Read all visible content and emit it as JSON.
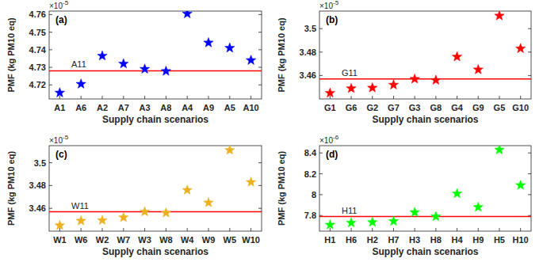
{
  "chart_data": [
    {
      "type": "scatter",
      "title": "(a)",
      "x_label": "Supply chain scenarios",
      "y_label": "PMF (kg PM10 eq)",
      "y_multiplier": {
        "base": "×10",
        "exponent": "-5"
      },
      "categories": [
        "A1",
        "A6",
        "A2",
        "A7",
        "A3",
        "A8",
        "A4",
        "A9",
        "A5",
        "A10"
      ],
      "values": [
        4.7155,
        4.7205,
        4.7365,
        4.732,
        4.729,
        4.7278,
        4.7605,
        4.744,
        4.741,
        4.734
      ],
      "color": "#0000ff",
      "marker": "star",
      "reference": {
        "label": "A11",
        "value": 4.728,
        "color": "#ff0000"
      },
      "ylim": [
        4.712,
        4.762
      ],
      "yticks": [
        4.72,
        4.73,
        4.74,
        4.75,
        4.76
      ],
      "grid": false
    },
    {
      "type": "scatter",
      "title": "(b)",
      "x_label": "Supply chain scenarios",
      "y_label": "PMF (kg PM10 eq)",
      "y_multiplier": {
        "base": "×10",
        "exponent": "-5"
      },
      "categories": [
        "G1",
        "G6",
        "G2",
        "G7",
        "G3",
        "G8",
        "G4",
        "G9",
        "G5",
        "G10"
      ],
      "values": [
        3.445,
        3.449,
        3.4495,
        3.452,
        3.457,
        3.456,
        3.476,
        3.465,
        3.511,
        3.483
      ],
      "color": "#ff0000",
      "marker": "star",
      "reference": {
        "label": "G11",
        "value": 3.457,
        "color": "#ff0000"
      },
      "ylim": [
        3.44,
        3.515
      ],
      "yticks": [
        3.46,
        3.48,
        3.5
      ],
      "grid": false
    },
    {
      "type": "scatter",
      "title": "(c)",
      "x_label": "Supply chain scenarios",
      "y_label": "PMF (kg PM10 eq)",
      "y_multiplier": {
        "base": "×10",
        "exponent": "-5"
      },
      "categories": [
        "W1",
        "W6",
        "W2",
        "W7",
        "W3",
        "W8",
        "W4",
        "W9",
        "W5",
        "W10"
      ],
      "values": [
        3.445,
        3.449,
        3.4495,
        3.452,
        3.457,
        3.456,
        3.476,
        3.465,
        3.511,
        3.483
      ],
      "color": "#edb120",
      "marker": "star",
      "reference": {
        "label": "W11",
        "value": 3.457,
        "color": "#ff0000"
      },
      "ylim": [
        3.44,
        3.515
      ],
      "yticks": [
        3.46,
        3.48,
        3.5
      ],
      "grid": false
    },
    {
      "type": "scatter",
      "title": "(d)",
      "x_label": "Supply chain scenarios",
      "y_label": "PMF (kg PM10 eq)",
      "y_multiplier": {
        "base": "×10",
        "exponent": "-6"
      },
      "categories": [
        "H1",
        "H6",
        "H2",
        "H7",
        "H3",
        "H8",
        "H4",
        "H9",
        "H5",
        "H10"
      ],
      "values": [
        7.71,
        7.73,
        7.735,
        7.745,
        7.83,
        7.79,
        8.01,
        7.88,
        8.43,
        8.09
      ],
      "color": "#00ff00",
      "marker": "star",
      "reference": {
        "label": "H11",
        "value": 7.79,
        "color": "#ff0000"
      },
      "ylim": [
        7.65,
        8.47
      ],
      "yticks": [
        7.8,
        8,
        8.2,
        8.4
      ],
      "grid": false
    }
  ]
}
